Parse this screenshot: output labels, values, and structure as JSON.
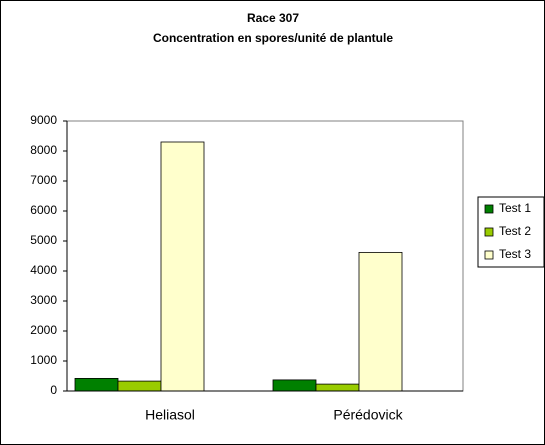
{
  "chart_data": {
    "type": "bar",
    "title": "Race 307",
    "subtitle": "Concentration en spores/unité de plantule",
    "categories": [
      "Heliasol",
      "Pérédovick"
    ],
    "series": [
      {
        "name": "Test 1",
        "color": "#008000",
        "values": [
          420,
          370
        ]
      },
      {
        "name": "Test 2",
        "color": "#99cc00",
        "values": [
          330,
          230
        ]
      },
      {
        "name": "Test 3",
        "color": "#ffffcc",
        "values": [
          8300,
          4620
        ]
      }
    ],
    "ylim": [
      0,
      9000
    ],
    "yticks": [
      0,
      1000,
      2000,
      3000,
      4000,
      5000,
      6000,
      7000,
      8000,
      9000
    ],
    "legend": "right"
  }
}
